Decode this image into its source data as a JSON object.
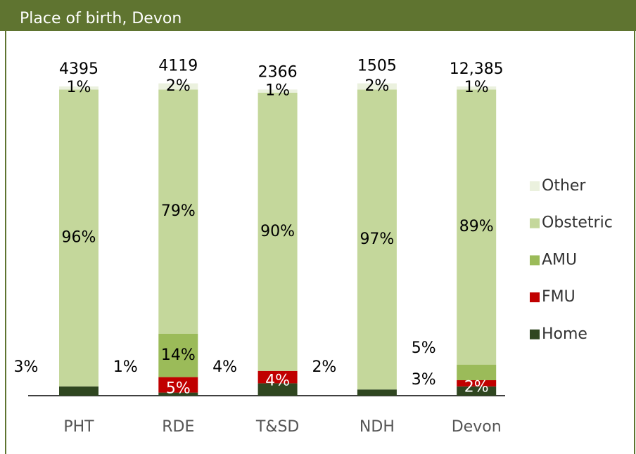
{
  "chart_data": {
    "type": "stacked_bar",
    "title": "Place of birth, Devon",
    "categories": [
      "PHT",
      "RDE",
      "T&SD",
      "NDH",
      "Devon"
    ],
    "totals": {
      "values": [
        4395,
        4119,
        2366,
        1505,
        12385
      ],
      "value_labels": [
        "4395",
        "4119",
        "2366",
        "1505",
        "12,385"
      ]
    },
    "series": [
      {
        "name": "Home",
        "color": "#2f4620",
        "values": [
          3,
          1,
          4,
          2,
          3
        ]
      },
      {
        "name": "FMU",
        "color": "#c00000",
        "values": [
          0,
          5,
          4,
          0,
          2
        ]
      },
      {
        "name": "AMU",
        "color": "#9bbb59",
        "values": [
          0,
          14,
          0,
          0,
          5
        ]
      },
      {
        "name": "Obstetric",
        "color": "#c4d79b",
        "values": [
          96,
          79,
          90,
          97,
          89
        ]
      },
      {
        "name": "Other",
        "color": "#ebf1de",
        "values": [
          1,
          2,
          1,
          2,
          1
        ]
      }
    ],
    "ylim": [
      0,
      100
    ],
    "legend": "right"
  }
}
